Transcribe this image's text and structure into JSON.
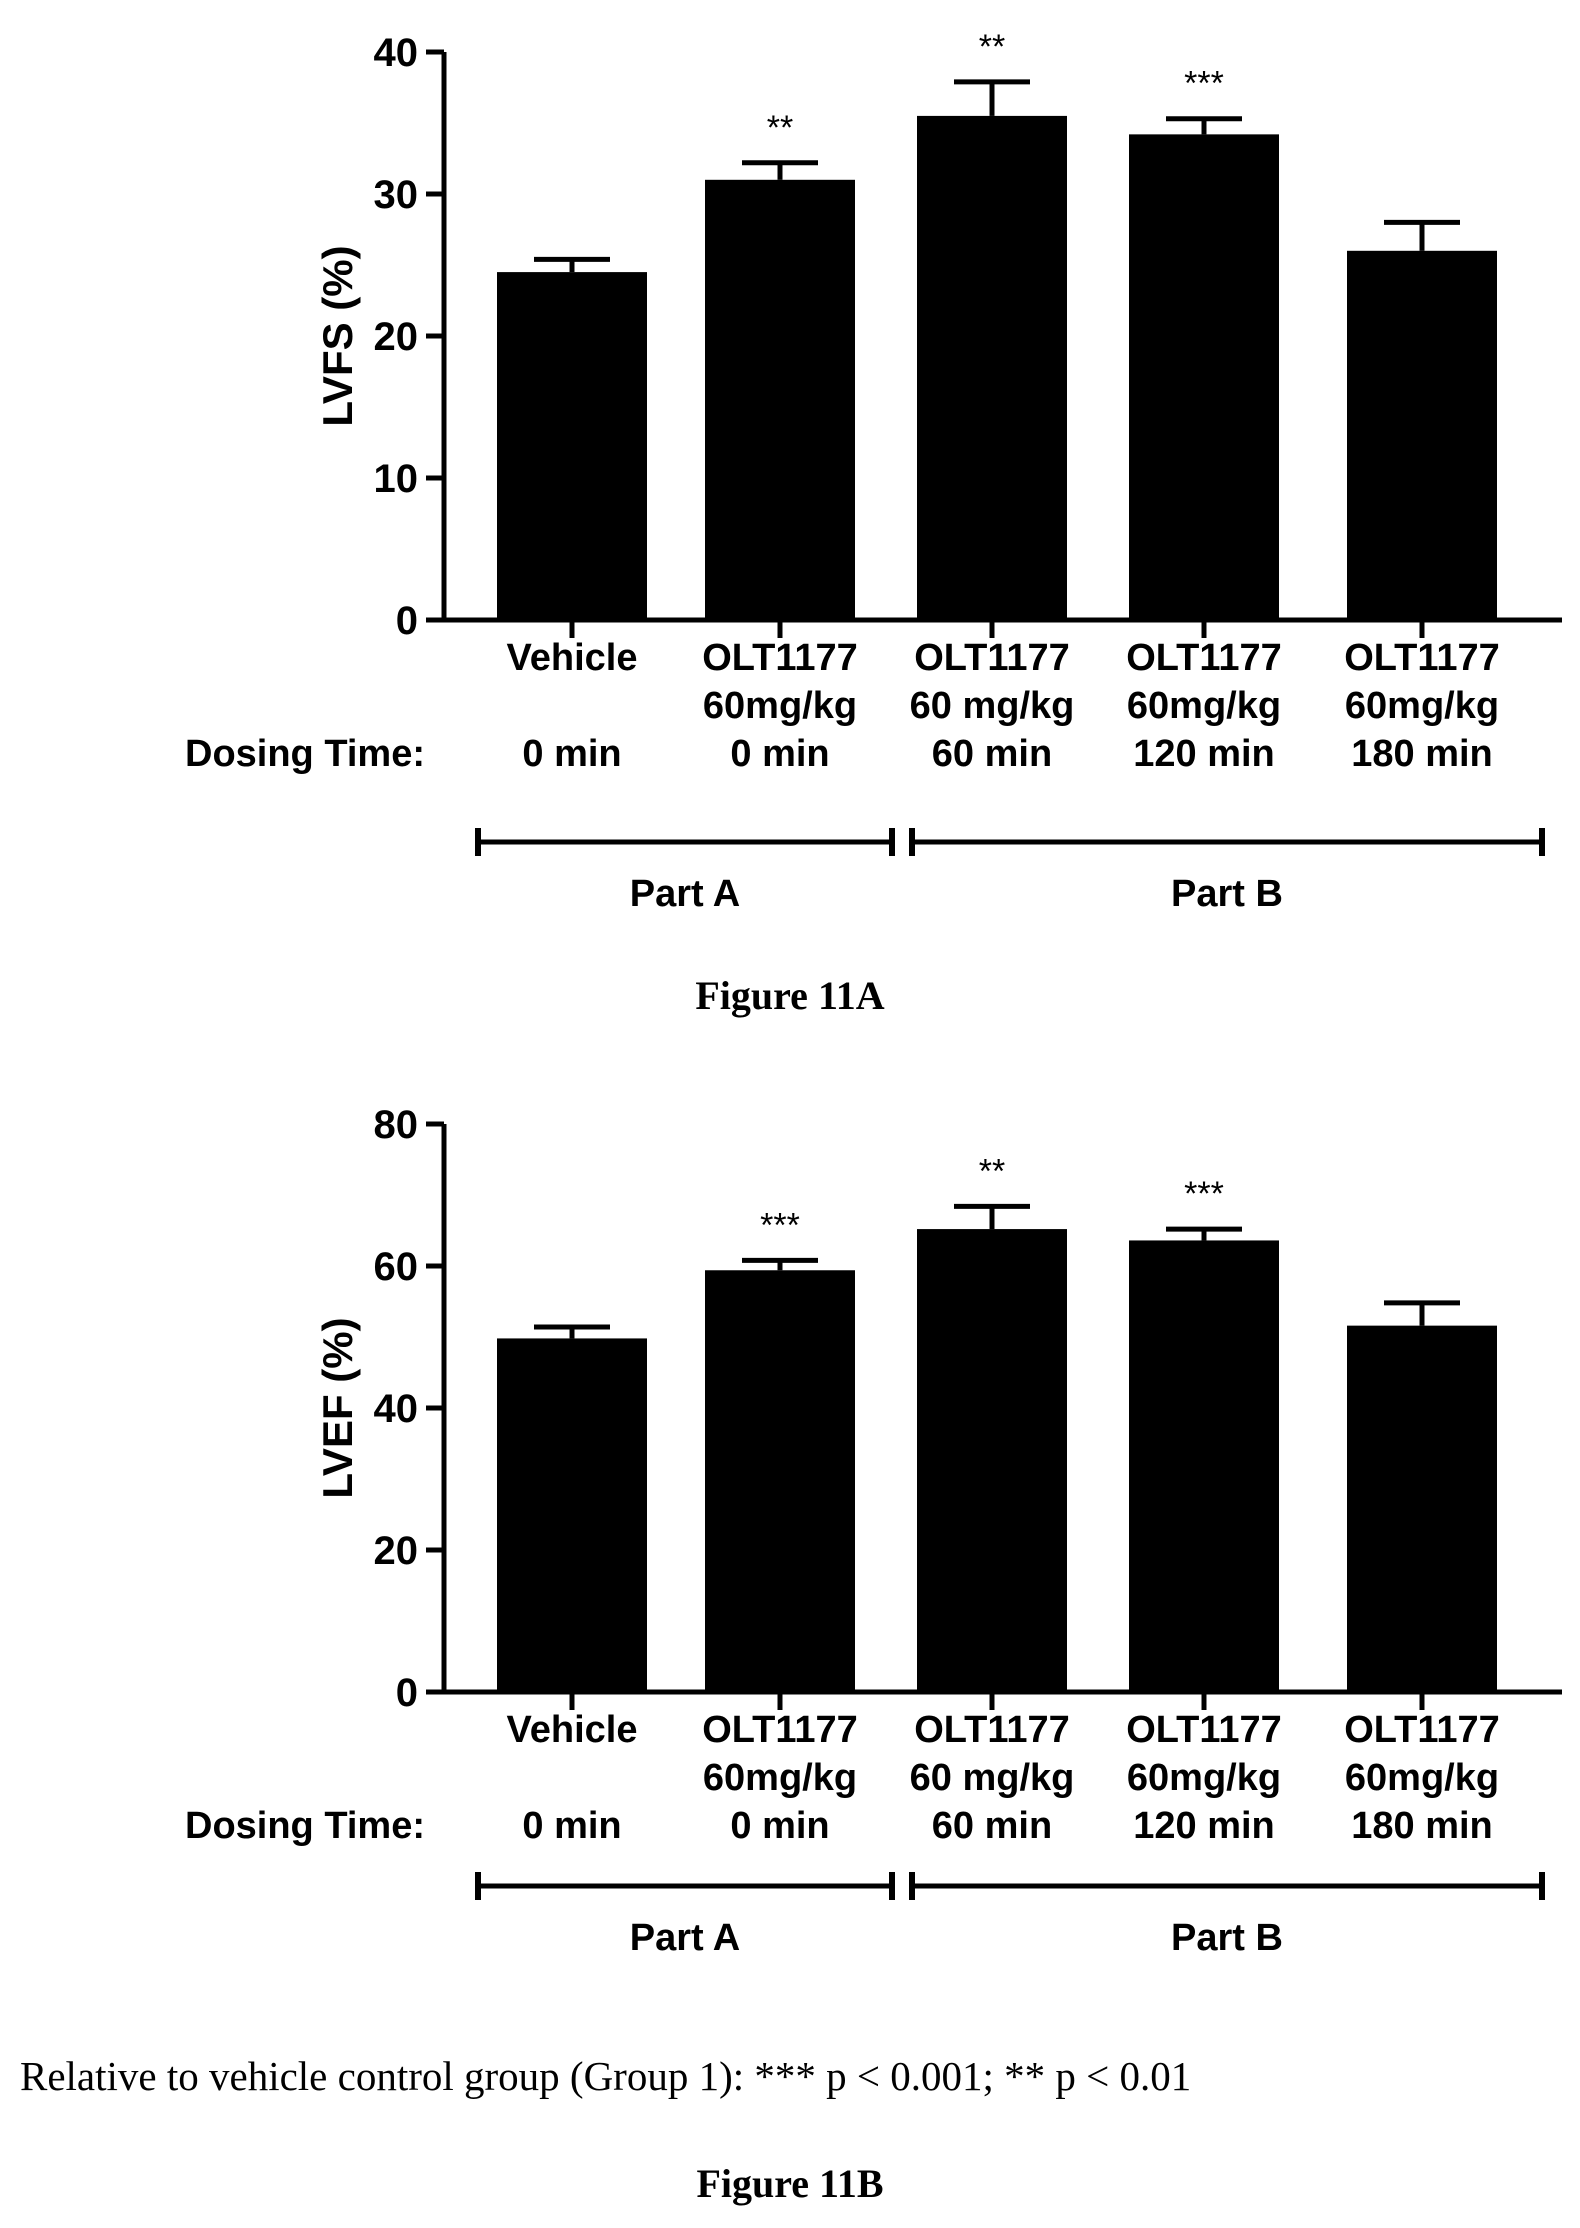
{
  "chart_data": [
    {
      "type": "bar",
      "ylabel": "LVFS (%)",
      "ylim": [
        0,
        40
      ],
      "yticks": [
        0,
        10,
        20,
        30,
        40
      ],
      "categories": [
        {
          "lines": [
            "Vehicle",
            "",
            "0 min"
          ]
        },
        {
          "lines": [
            "OLT1177",
            "60mg/kg",
            "0 min"
          ]
        },
        {
          "lines": [
            "OLT1177",
            "60 mg/kg",
            "60 min"
          ]
        },
        {
          "lines": [
            "OLT1177",
            "60mg/kg",
            "120 min"
          ]
        },
        {
          "lines": [
            "OLT1177",
            "60mg/kg",
            "180 min"
          ]
        }
      ],
      "values": [
        24.5,
        31.0,
        35.5,
        34.2,
        26.0
      ],
      "errors": [
        0.9,
        1.2,
        2.4,
        1.1,
        2.0
      ],
      "significance": [
        "",
        "**",
        "**",
        "***",
        ""
      ],
      "row_label": "Dosing Time:",
      "groups": [
        {
          "label": "Part A",
          "span": [
            0,
            1
          ]
        },
        {
          "label": "Part B",
          "span": [
            2,
            4
          ]
        }
      ],
      "bar_color": "#000000",
      "caption": "Figure 11A"
    },
    {
      "type": "bar",
      "ylabel": "LVEF (%)",
      "ylim": [
        0,
        80
      ],
      "yticks": [
        0,
        20,
        40,
        60,
        80
      ],
      "categories": [
        {
          "lines": [
            "Vehicle",
            "",
            "0 min"
          ]
        },
        {
          "lines": [
            "OLT1177",
            "60mg/kg",
            "0 min"
          ]
        },
        {
          "lines": [
            "OLT1177",
            "60 mg/kg",
            "60 min"
          ]
        },
        {
          "lines": [
            "OLT1177",
            "60mg/kg",
            "120 min"
          ]
        },
        {
          "lines": [
            "OLT1177",
            "60mg/kg",
            "180 min"
          ]
        }
      ],
      "values": [
        49.8,
        59.4,
        65.2,
        63.6,
        51.6
      ],
      "errors": [
        1.6,
        1.4,
        3.2,
        1.6,
        3.2
      ],
      "significance": [
        "",
        "***",
        "**",
        "***",
        ""
      ],
      "row_label": "Dosing Time:",
      "groups": [
        {
          "label": "Part A",
          "span": [
            0,
            1
          ]
        },
        {
          "label": "Part B",
          "span": [
            2,
            4
          ]
        }
      ],
      "bar_color": "#000000",
      "caption": "Figure 11B"
    }
  ],
  "footnote": "Relative to vehicle control group (Group 1): *** p < 0.001; ** p < 0.01"
}
